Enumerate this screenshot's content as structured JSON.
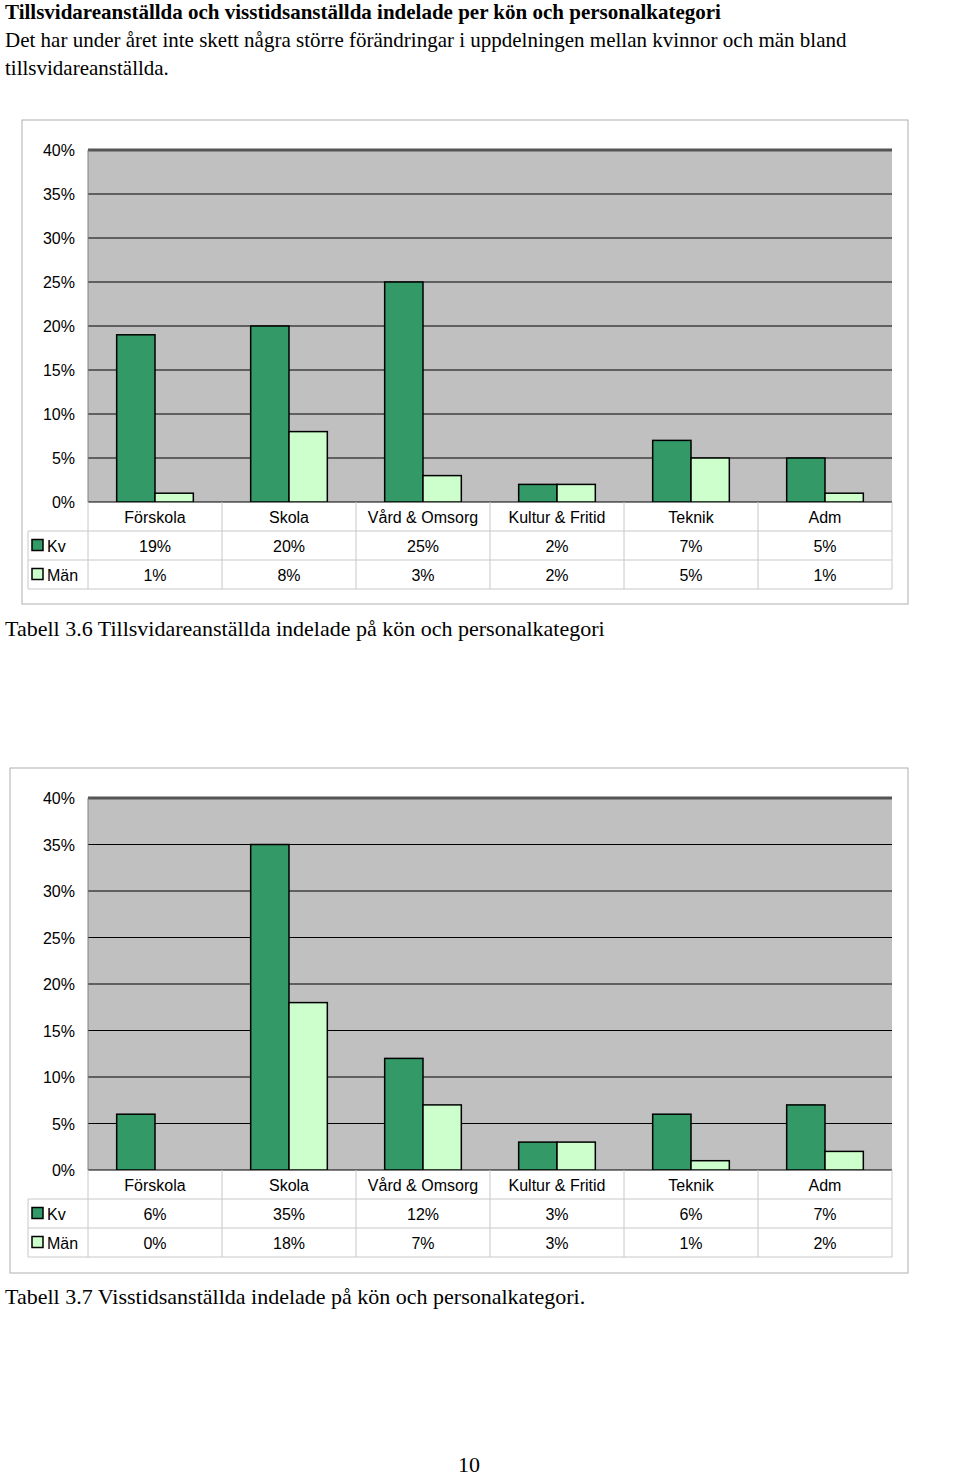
{
  "heading": "Tillsvidareanställda och visstidsanställda indelade per kön och personalkategori",
  "paragraph": "Det har under året inte skett några större förändringar i uppdelningen mellan kvinnor och män bland tillsvidareanställda.",
  "page_number": "10",
  "chart_data": [
    {
      "type": "bar",
      "title": "Tabell 3.6 Tillsvidareanställda indelade på kön och personalkategori",
      "categories": [
        "Förskola",
        "Skola",
        "Vård & Omsorg",
        "Kultur & Fritid",
        "Teknik",
        "Adm"
      ],
      "series": [
        {
          "name": "Kv",
          "color": "#339966",
          "values": [
            19,
            20,
            25,
            2,
            7,
            5
          ],
          "value_labels": [
            "19%",
            "20%",
            "25%",
            "2%",
            "7%",
            "5%"
          ]
        },
        {
          "name": "Män",
          "color": "#ccffcc",
          "values": [
            1,
            8,
            3,
            2,
            5,
            1
          ],
          "value_labels": [
            "1%",
            "8%",
            "3%",
            "2%",
            "5%",
            "1%"
          ]
        }
      ],
      "ylim": [
        0,
        40
      ],
      "yticks": [
        {
          "value": 0,
          "label": "0%"
        },
        {
          "value": 5,
          "label": "5%"
        },
        {
          "value": 10,
          "label": "10%"
        },
        {
          "value": 15,
          "label": "15%"
        },
        {
          "value": 20,
          "label": "20%"
        },
        {
          "value": 25,
          "label": "25%"
        },
        {
          "value": 30,
          "label": "30%"
        },
        {
          "value": 35,
          "label": "35%"
        },
        {
          "value": 40,
          "label": "40%"
        }
      ],
      "grid": true,
      "legend": "bottom-left",
      "data_labels": true
    },
    {
      "type": "bar",
      "title": "Tabell 3.7 Visstidsanställda indelade på kön och personalkategori.",
      "categories": [
        "Förskola",
        "Skola",
        "Vård & Omsorg",
        "Kultur & Fritid",
        "Teknik",
        "Adm"
      ],
      "series": [
        {
          "name": "Kv",
          "color": "#339966",
          "values": [
            6,
            35,
            12,
            3,
            6,
            7
          ],
          "value_labels": [
            "6%",
            "35%",
            "12%",
            "3%",
            "6%",
            "7%"
          ]
        },
        {
          "name": "Män",
          "color": "#ccffcc",
          "values": [
            0,
            18,
            7,
            3,
            1,
            2
          ],
          "value_labels": [
            "0%",
            "18%",
            "7%",
            "3%",
            "1%",
            "2%"
          ]
        }
      ],
      "ylim": [
        0,
        40
      ],
      "yticks": [
        {
          "value": 0,
          "label": "0%"
        },
        {
          "value": 5,
          "label": "5%"
        },
        {
          "value": 10,
          "label": "10%"
        },
        {
          "value": 15,
          "label": "15%"
        },
        {
          "value": 20,
          "label": "20%"
        },
        {
          "value": 25,
          "label": "25%"
        },
        {
          "value": 30,
          "label": "30%"
        },
        {
          "value": 35,
          "label": "35%"
        },
        {
          "value": 40,
          "label": "40%"
        }
      ],
      "grid": true,
      "legend": "bottom-left",
      "data_labels": true
    }
  ]
}
